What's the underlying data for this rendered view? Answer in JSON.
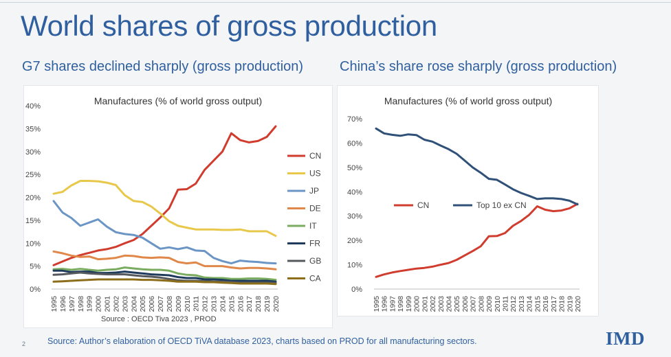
{
  "slide": {
    "title": "World shares of gross production",
    "page_number": "2",
    "source_footer": "Source: Author’s elaboration of OECD   TiVA  database 2023, charts based on PROD for all manufacturing sectors.",
    "logo_text": "IMD"
  },
  "panels": {
    "left_heading": "G7 shares declined sharply (gross production)",
    "right_heading": "China’s share rose sharply (gross production)"
  },
  "colors": {
    "CN": "#d03c2e",
    "US": "#e8c84a",
    "JP": "#6b95c4",
    "DE": "#e0874a",
    "IT": "#79ac5e",
    "FR": "#1f3b5c",
    "GB": "#55595e",
    "CA": "#8c6d1a",
    "Top10": "#2f5077",
    "axis_text": "#444444",
    "title_text": "#333333"
  },
  "chart_data": [
    {
      "type": "line",
      "title": "Manufactures (% of world gross output)",
      "source_note": "Source : OECD Tiva 2023 , PROD",
      "x": [
        1995,
        1996,
        1997,
        1998,
        1999,
        2000,
        2001,
        2002,
        2003,
        2004,
        2005,
        2006,
        2007,
        2008,
        2009,
        2010,
        2011,
        2012,
        2013,
        2014,
        2015,
        2016,
        2017,
        2018,
        2019,
        2020
      ],
      "y_ticks": [
        0,
        5,
        10,
        15,
        20,
        25,
        30,
        35,
        40
      ],
      "y_tick_labels": [
        "0%",
        "5%",
        "10%",
        "15%",
        "20%",
        "25%",
        "30%",
        "35%",
        "40%"
      ],
      "ylim": [
        0,
        40
      ],
      "legend_position": "right",
      "series": [
        {
          "name": "CN",
          "color_key": "CN",
          "values": [
            5.2,
            6.0,
            6.8,
            7.4,
            7.9,
            8.4,
            8.7,
            9.2,
            10.0,
            10.7,
            12.0,
            13.8,
            15.6,
            17.6,
            21.7,
            21.8,
            23.0,
            26.0,
            28.0,
            30.0,
            34.0,
            32.5,
            32.0,
            32.3,
            33.2,
            35.5
          ]
        },
        {
          "name": "US",
          "color_key": "US",
          "values": [
            20.8,
            21.2,
            22.6,
            23.6,
            23.6,
            23.5,
            23.2,
            22.7,
            20.5,
            19.2,
            19.0,
            18.0,
            16.5,
            14.8,
            13.8,
            13.4,
            13.0,
            13.0,
            13.0,
            12.9,
            12.9,
            13.0,
            12.6,
            12.6,
            12.6,
            11.6
          ]
        },
        {
          "name": "JP",
          "color_key": "JP",
          "values": [
            19.2,
            16.7,
            15.5,
            13.8,
            14.5,
            15.2,
            13.6,
            12.4,
            12.0,
            11.8,
            11.2,
            10.0,
            8.8,
            9.1,
            8.7,
            9.1,
            8.4,
            8.3,
            6.8,
            6.1,
            5.6,
            6.2,
            6.0,
            5.9,
            5.7,
            5.6
          ]
        },
        {
          "name": "DE",
          "color_key": "DE",
          "values": [
            8.2,
            7.8,
            7.3,
            7.0,
            7.1,
            6.5,
            6.6,
            6.8,
            7.3,
            7.2,
            6.9,
            6.8,
            6.9,
            6.8,
            5.9,
            5.6,
            5.8,
            5.0,
            5.0,
            5.0,
            4.7,
            4.5,
            4.6,
            4.6,
            4.5,
            4.3
          ]
        },
        {
          "name": "IT",
          "color_key": "IT",
          "values": [
            4.3,
            4.4,
            4.2,
            4.4,
            4.2,
            4.0,
            4.2,
            4.3,
            4.7,
            4.5,
            4.3,
            4.2,
            4.2,
            4.0,
            3.4,
            3.1,
            3.0,
            2.5,
            2.4,
            2.4,
            2.2,
            2.2,
            2.3,
            2.3,
            2.2,
            2.0
          ]
        },
        {
          "name": "FR",
          "color_key": "FR",
          "values": [
            4.0,
            4.0,
            3.7,
            3.8,
            3.8,
            3.5,
            3.5,
            3.6,
            3.8,
            3.6,
            3.4,
            3.2,
            3.1,
            3.0,
            2.6,
            2.4,
            2.4,
            2.1,
            2.1,
            2.0,
            1.8,
            1.8,
            1.8,
            1.8,
            1.8,
            1.6
          ]
        },
        {
          "name": "GB",
          "color_key": "GB",
          "values": [
            3.1,
            3.2,
            3.4,
            3.6,
            3.4,
            3.3,
            3.2,
            3.2,
            3.2,
            3.0,
            2.8,
            2.7,
            2.5,
            2.2,
            1.9,
            1.8,
            1.8,
            1.7,
            1.6,
            1.6,
            1.5,
            1.4,
            1.4,
            1.4,
            1.4,
            1.3
          ]
        },
        {
          "name": "CA",
          "color_key": "CA",
          "values": [
            1.6,
            1.7,
            1.8,
            1.9,
            2.0,
            2.1,
            2.1,
            2.1,
            2.1,
            2.1,
            2.0,
            2.0,
            1.9,
            1.8,
            1.6,
            1.6,
            1.6,
            1.5,
            1.5,
            1.4,
            1.3,
            1.2,
            1.2,
            1.2,
            1.2,
            1.1
          ]
        }
      ]
    },
    {
      "type": "line",
      "title": "Manufactures (% of world gross output)",
      "x": [
        1995,
        1996,
        1997,
        1998,
        1999,
        2000,
        2001,
        2002,
        2003,
        2004,
        2005,
        2006,
        2007,
        2008,
        2009,
        2010,
        2011,
        2012,
        2013,
        2014,
        2015,
        2016,
        2017,
        2018,
        2019,
        2020
      ],
      "y_ticks": [
        0,
        10,
        20,
        30,
        40,
        50,
        60,
        70
      ],
      "y_tick_labels": [
        "0%",
        "10%",
        "20%",
        "30%",
        "40%",
        "50%",
        "60%",
        "70%"
      ],
      "ylim": [
        0,
        70
      ],
      "legend_position": "center",
      "series": [
        {
          "name": "CN",
          "color_key": "CN",
          "values": [
            5.0,
            6.0,
            6.8,
            7.4,
            7.9,
            8.4,
            8.7,
            9.2,
            10.0,
            10.7,
            12.0,
            13.8,
            15.6,
            17.6,
            21.7,
            21.8,
            23.0,
            26.0,
            28.0,
            30.5,
            34.0,
            32.6,
            32.0,
            32.3,
            33.2,
            35.0
          ]
        },
        {
          "name": "Top  10 ex CN",
          "color_key": "Top10",
          "values": [
            66.0,
            64.0,
            63.4,
            63.0,
            63.6,
            63.3,
            61.4,
            60.6,
            59.0,
            57.5,
            55.6,
            52.8,
            50.0,
            47.8,
            45.3,
            44.9,
            43.0,
            41.0,
            39.5,
            38.3,
            37.0,
            37.3,
            37.3,
            37.0,
            36.3,
            34.8
          ]
        }
      ]
    }
  ]
}
